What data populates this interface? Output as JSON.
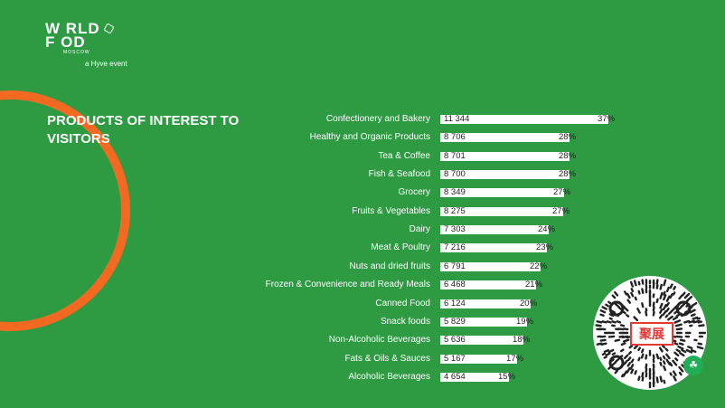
{
  "brand": {
    "logo_line1": "W RLD",
    "logo_line2": "F  OD",
    "logo_sub": "MOSCOW",
    "tagline": "a Hyve event"
  },
  "heading": "PRODUCTS OF INTEREST TO VISITORS",
  "colors": {
    "background": "#2e9b43",
    "accent_ring": "#f26a21",
    "bar": "#ffffff",
    "qr_logo_red": "#e53935"
  },
  "qr": {
    "center_text": "聚展",
    "badge_icon": "wechat-miniprogram-icon"
  },
  "chart_data": {
    "type": "bar",
    "orientation": "horizontal",
    "title": "PRODUCTS OF INTEREST TO VISITORS",
    "categories": [
      "Confectionery and Bakery",
      "Healthy and Organic Products",
      "Tea & Coffee",
      "Fish & Seafood",
      "Grocery",
      "Fruits & Vegetables",
      "Dairy",
      "Meat & Poultry",
      "Nuts and dried fruits",
      "Frozen & Convenience and Ready Meals",
      "Canned Food",
      "Snack foods",
      "Non-Alcoholic Beverages",
      "Fats & Oils & Sauces",
      "Alcoholic Beverages"
    ],
    "values": [
      11344,
      8706,
      8701,
      8700,
      8349,
      8275,
      7303,
      7216,
      6791,
      6468,
      6124,
      5829,
      5636,
      5167,
      4654
    ],
    "value_labels": [
      "11 344",
      "8 706",
      "8 701",
      "8 700",
      "8 349",
      "8 275",
      "7 303",
      "7 216",
      "6 791",
      "6 468",
      "6 124",
      "5 829",
      "5 636",
      "5 167",
      "4 654"
    ],
    "percent_labels": [
      "37%",
      "28%",
      "28%",
      "28%",
      "27%",
      "27%",
      "24%",
      "23%",
      "22%",
      "21%",
      "20%",
      "19%",
      "18%",
      "17%",
      "15%"
    ],
    "xlabel": "",
    "ylabel": "",
    "legend": "none",
    "grid": false
  }
}
